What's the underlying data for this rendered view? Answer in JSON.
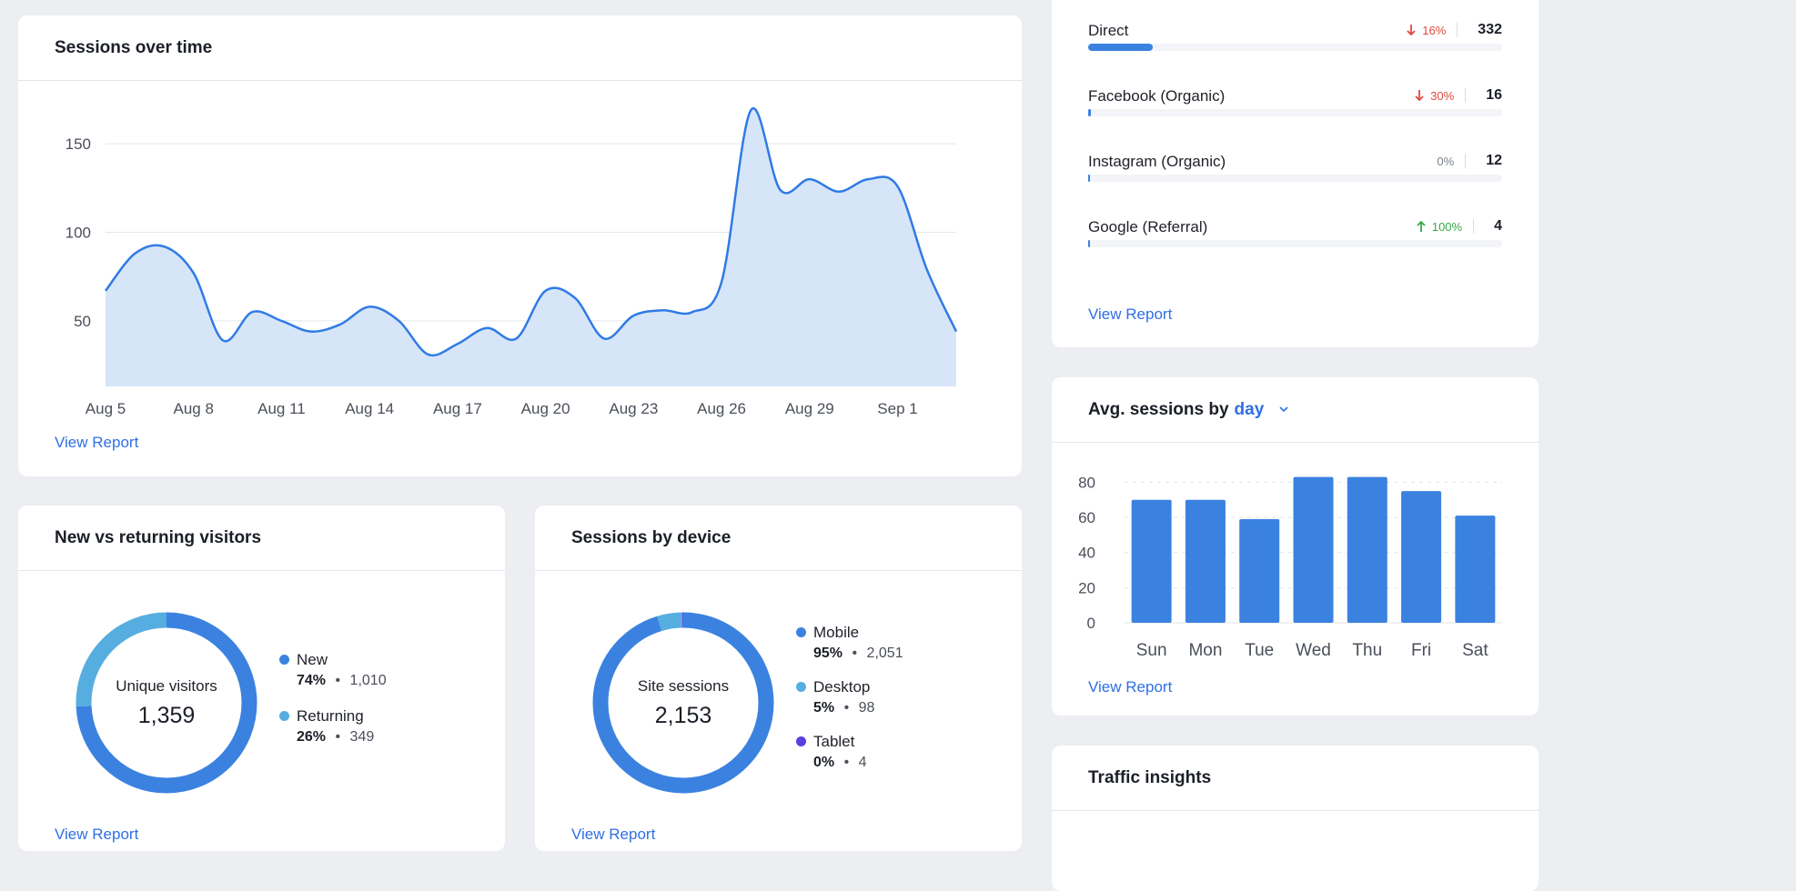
{
  "sessions_card": {
    "title": "Sessions over time",
    "view_report": "View Report"
  },
  "chart_data": [
    {
      "type": "area",
      "title": "Sessions over time",
      "x": [
        "Aug 5",
        "Aug 6",
        "Aug 7",
        "Aug 8",
        "Aug 9",
        "Aug 10",
        "Aug 11",
        "Aug 12",
        "Aug 13",
        "Aug 14",
        "Aug 15",
        "Aug 16",
        "Aug 17",
        "Aug 18",
        "Aug 19",
        "Aug 20",
        "Aug 21",
        "Aug 22",
        "Aug 23",
        "Aug 24",
        "Aug 25",
        "Aug 26",
        "Aug 27",
        "Aug 28",
        "Aug 29",
        "Aug 30",
        "Aug 31",
        "Sep 1",
        "Sep 2",
        "Sep 3"
      ],
      "values": [
        67,
        88,
        92,
        77,
        39,
        55,
        50,
        44,
        48,
        58,
        50,
        31,
        37,
        46,
        40,
        67,
        63,
        40,
        53,
        56,
        55,
        72,
        169,
        124,
        130,
        123,
        130,
        126,
        79,
        44
      ],
      "xticks": [
        "Aug 5",
        "Aug 8",
        "Aug 11",
        "Aug 14",
        "Aug 17",
        "Aug 20",
        "Aug 23",
        "Aug 26",
        "Aug 29",
        "Sep 1"
      ],
      "yticks": [
        50,
        100,
        150
      ],
      "ylim": [
        13,
        185
      ],
      "grid": true,
      "color": "#2f7be5"
    },
    {
      "type": "bar",
      "title": "Avg. sessions by day",
      "categories": [
        "Sun",
        "Mon",
        "Tue",
        "Wed",
        "Thu",
        "Fri",
        "Sat"
      ],
      "values": [
        70,
        70,
        59,
        83,
        83,
        75,
        61
      ],
      "yticks": [
        0,
        20,
        40,
        60,
        80
      ],
      "ylim": [
        0,
        88
      ],
      "color": "#3b82e0"
    }
  ],
  "new_returning": {
    "title": "New vs returning visitors",
    "center_label": "Unique visitors",
    "center_value": "1,359",
    "legend": [
      {
        "name": "New",
        "pct": "74%",
        "sep": "•",
        "count": "1,010",
        "color": "#3b82e0",
        "fraction": 0.743
      },
      {
        "name": "Returning",
        "pct": "26%",
        "sep": "•",
        "count": "349",
        "color": "#56aee0",
        "fraction": 0.257
      }
    ],
    "view_report": "View Report"
  },
  "by_device": {
    "title": "Sessions by device",
    "center_label": "Site sessions",
    "center_value": "2,153",
    "legend": [
      {
        "name": "Mobile",
        "pct": "95%",
        "sep": "•",
        "count": "2,051",
        "color": "#3b82e0",
        "fraction": 0.953
      },
      {
        "name": "Desktop",
        "pct": "5%",
        "sep": "•",
        "count": "98",
        "color": "#56aee0",
        "fraction": 0.045
      },
      {
        "name": "Tablet",
        "pct": "0%",
        "sep": "•",
        "count": "4",
        "color": "#5b3fe0",
        "fraction": 0.002
      }
    ],
    "view_report": "View Report"
  },
  "traffic_sources": {
    "rows": [
      {
        "name": "Direct",
        "change": "16%",
        "direction": "down",
        "count": "332",
        "fraction": 0.155
      },
      {
        "name": "Facebook (Organic)",
        "change": "30%",
        "direction": "down",
        "count": "16",
        "fraction": 0.006
      },
      {
        "name": "Instagram (Organic)",
        "change": "0%",
        "direction": "none",
        "count": "12",
        "fraction": 0.005
      },
      {
        "name": "Google (Referral)",
        "change": "100%",
        "direction": "up",
        "count": "4",
        "fraction": 0.002
      }
    ],
    "colors": {
      "down": "#e0483e",
      "up": "#3aa649",
      "none": "#7b818c"
    },
    "view_report": "View Report"
  },
  "avg_sessions": {
    "title_prefix": "Avg. sessions by",
    "period": "day",
    "view_report": "View Report"
  },
  "traffic_insights": {
    "title": "Traffic insights"
  }
}
